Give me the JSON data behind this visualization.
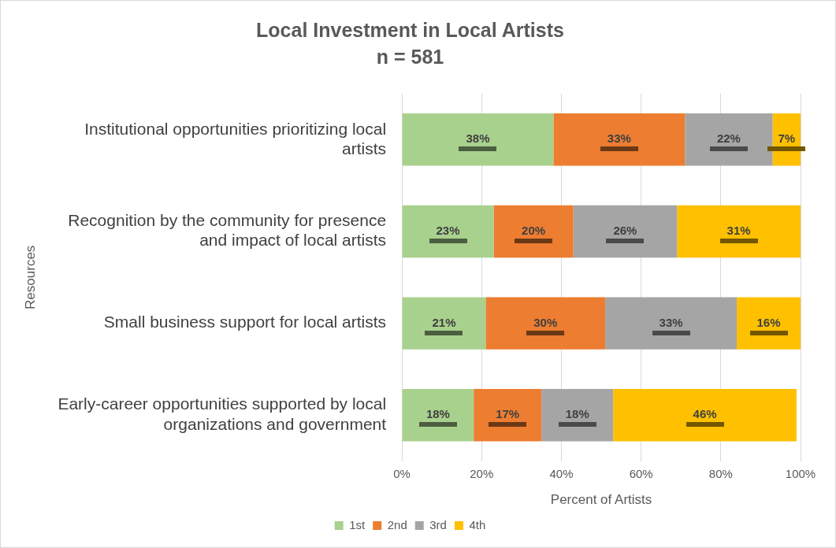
{
  "chart_data": {
    "type": "bar",
    "orientation": "horizontal",
    "stacked": true,
    "title": "Local Investment in Local Artists",
    "subtitle": "n = 581",
    "categories": [
      "Institutional opportunities prioritizing local artists",
      "Recognition by the community for presence and impact of local artists",
      "Small business support for local artists",
      "Early-career opportunities supported by local organizations and government"
    ],
    "series": [
      {
        "name": "1st",
        "color": "#a9d18e",
        "values": [
          38,
          23,
          21,
          18
        ],
        "value_labels": [
          "38%",
          "23%",
          "21%",
          "18%"
        ]
      },
      {
        "name": "2nd",
        "color": "#ed7d31",
        "values": [
          33,
          20,
          30,
          17
        ],
        "value_labels": [
          "33%",
          "20%",
          "30%",
          "17%"
        ]
      },
      {
        "name": "3rd",
        "color": "#a5a5a5",
        "values": [
          22,
          26,
          33,
          18
        ],
        "value_labels": [
          "22%",
          "26%",
          "33%",
          "18%"
        ]
      },
      {
        "name": "4th",
        "color": "#ffc000",
        "values": [
          7,
          31,
          16,
          46
        ],
        "value_labels": [
          "7%",
          "31%",
          "16%",
          "46%"
        ]
      }
    ],
    "xlim": [
      0,
      100
    ],
    "xticks": [
      {
        "value": 0,
        "label": "0%"
      },
      {
        "value": 20,
        "label": "20%"
      },
      {
        "value": 40,
        "label": "40%"
      },
      {
        "value": 60,
        "label": "60%"
      },
      {
        "value": 80,
        "label": "80%"
      },
      {
        "value": 100,
        "label": "100%"
      }
    ],
    "xlabel": "Percent of Artists",
    "ylabel": "Resources",
    "grid": "x",
    "legend": "bottom"
  }
}
